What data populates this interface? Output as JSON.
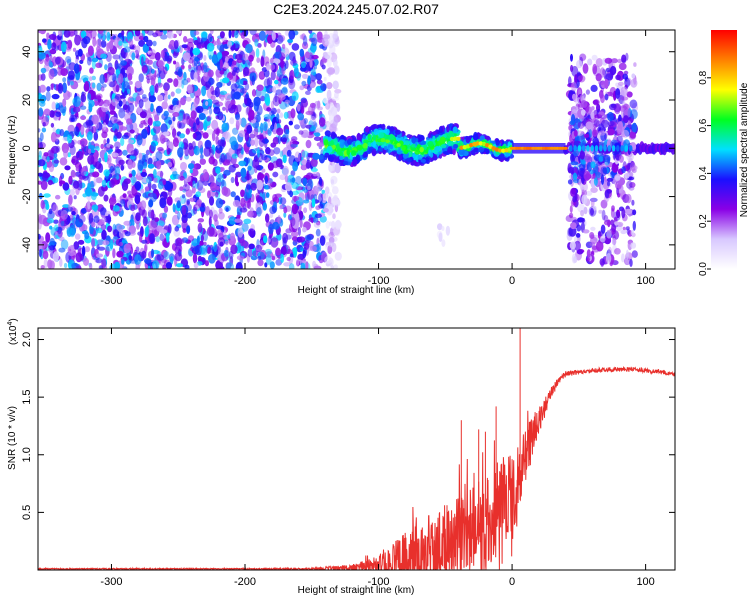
{
  "figure_title": "C2E3.2024.245.07.02.R07",
  "chart_data": [
    {
      "type": "heatmap",
      "title": "C2E3.2024.245.07.02.R07",
      "xlabel": "Height of straight line (km)",
      "ylabel": "Frequency (Hz)",
      "xlim": [
        -355,
        122
      ],
      "ylim": [
        -50,
        49
      ],
      "xticks": [
        -300,
        -200,
        -100,
        0,
        100
      ],
      "xtick_labels": [
        "-300",
        "-200",
        "-100",
        "0",
        "100"
      ],
      "yticks": [
        -40,
        -20,
        0,
        20,
        40
      ],
      "ytick_labels": [
        "-40",
        "-20",
        "0",
        "20",
        "40"
      ],
      "colorbar": {
        "label": "Normalized spectral amplitude",
        "range": [
          0,
          1
        ],
        "ticks": [
          0.0,
          0.2,
          0.4,
          0.6,
          0.8
        ],
        "tick_labels": [
          "0.0",
          "0.2",
          "0.4",
          "0.6",
          "0.8"
        ],
        "colors": [
          "#ffffff",
          "#d8c8ff",
          "#8a00e6",
          "#1a10ff",
          "#00e0ff",
          "#00ff20",
          "#ffff00",
          "#ff8000",
          "#ff0000"
        ]
      },
      "regions": [
        {
          "x": [
            -355,
            -140
          ],
          "freq": [
            -50,
            49
          ],
          "level": 0.12,
          "pattern": "broadband noise"
        },
        {
          "x": [
            -140,
            0
          ],
          "freq": [
            -6,
            8
          ],
          "level": 0.5,
          "pattern": "oscillating line near 0 Hz"
        },
        {
          "x": [
            0,
            40
          ],
          "freq": [
            -2,
            2
          ],
          "level": 0.9,
          "pattern": "narrow line at 0 Hz"
        },
        {
          "x": [
            43,
            92
          ],
          "freq": [
            -48,
            38
          ],
          "level": 0.15,
          "pattern": "band noise"
        },
        {
          "x": [
            40,
            122
          ],
          "freq": [
            -3,
            3
          ],
          "level": 0.2,
          "pattern": "line at 0 Hz"
        }
      ]
    },
    {
      "type": "line",
      "xlabel": "Height of straight line (km)",
      "ylabel": "SNR (10 * v/v)",
      "y_multiplier": "(x10",
      "y_multiplier_exp": "4",
      "y_multiplier_close": ")",
      "xlim": [
        -355,
        122
      ],
      "ylim": [
        0,
        2.1
      ],
      "xticks": [
        -300,
        -200,
        -100,
        0,
        100
      ],
      "xtick_labels": [
        "-300",
        "-200",
        "-100",
        "0",
        "100"
      ],
      "yticks": [
        0.5,
        1.0,
        1.5,
        2.0
      ],
      "ytick_labels": [
        "0.5",
        "1.0",
        "1.5",
        "2.0"
      ],
      "color": "#e8302c",
      "series": [
        {
          "x": [
            -355,
            -300,
            -250,
            -200,
            -150,
            -120,
            -105,
            -95,
            -85,
            -75,
            -65,
            -55,
            -45,
            -35,
            -25,
            -15,
            -10,
            -5,
            0,
            5,
            10,
            15,
            20,
            25,
            30,
            35,
            40,
            50,
            60,
            70,
            80,
            90,
            100,
            110,
            122
          ],
          "y": [
            0.01,
            0.01,
            0.01,
            0.01,
            0.01,
            0.02,
            0.04,
            0.06,
            0.1,
            0.14,
            0.2,
            0.24,
            0.3,
            0.35,
            0.42,
            0.5,
            0.6,
            0.7,
            0.72,
            0.8,
            1.0,
            1.15,
            1.3,
            1.42,
            1.55,
            1.65,
            1.7,
            1.72,
            1.73,
            1.74,
            1.74,
            1.74,
            1.73,
            1.72,
            1.7
          ],
          "spread": [
            0.005,
            0.005,
            0.005,
            0.005,
            0.008,
            0.03,
            0.07,
            0.12,
            0.2,
            0.25,
            0.3,
            0.32,
            0.35,
            0.38,
            0.4,
            0.4,
            0.42,
            0.4,
            0.35,
            0.3,
            0.25,
            0.2,
            0.12,
            0.08,
            0.05,
            0.03,
            0.025,
            0.02,
            0.02,
            0.02,
            0.02,
            0.02,
            0.02,
            0.02,
            0.02
          ]
        }
      ],
      "peaks": [
        {
          "x": -38,
          "y": 1.3
        },
        {
          "x": -25,
          "y": 1.22
        },
        {
          "x": -20,
          "y": 1.2
        },
        {
          "x": -12,
          "y": 1.42
        },
        {
          "x": 6,
          "y": 2.1
        }
      ]
    }
  ]
}
